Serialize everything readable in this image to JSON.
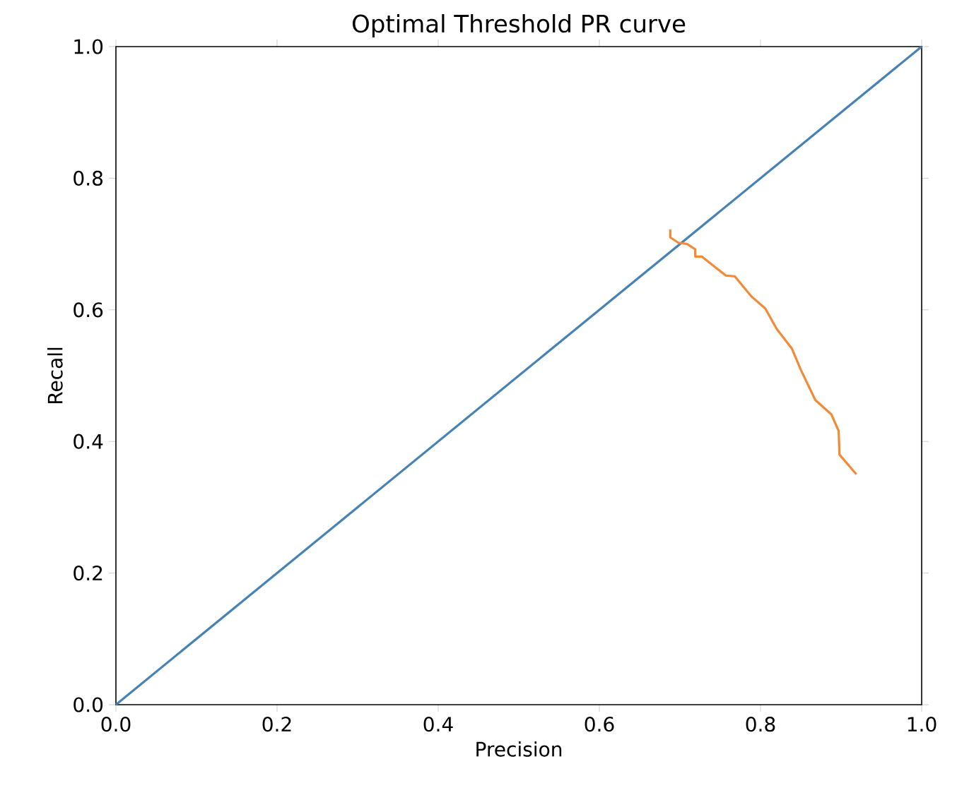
{
  "chart_data": {
    "type": "line",
    "title": "Optimal Threshold PR curve",
    "xlabel": "Precision",
    "ylabel": "Recall",
    "xlim": [
      0,
      1
    ],
    "ylim": [
      0,
      1
    ],
    "xticks": [
      {
        "value": 0,
        "label": "0.0"
      },
      {
        "value": 0.2,
        "label": "0.2"
      },
      {
        "value": 0.4,
        "label": "0.4"
      },
      {
        "value": 0.6,
        "label": "0.6"
      },
      {
        "value": 0.8,
        "label": "0.8"
      },
      {
        "value": 1,
        "label": "1.0"
      }
    ],
    "yticks": [
      {
        "value": 0,
        "label": "0.0"
      },
      {
        "value": 0.2,
        "label": "0.2"
      },
      {
        "value": 0.4,
        "label": "0.4"
      },
      {
        "value": 0.6,
        "label": "0.6"
      },
      {
        "value": 0.8,
        "label": "0.8"
      },
      {
        "value": 1,
        "label": "1.0"
      }
    ],
    "series": [
      {
        "color": "#4682b4",
        "x": [
          0,
          1
        ],
        "values": [
          0,
          1
        ]
      },
      {
        "color": "#f28a36",
        "x": [
          0.688,
          0.688,
          0.698,
          0.709,
          0.719,
          0.719,
          0.727,
          0.757,
          0.768,
          0.789,
          0.806,
          0.82,
          0.839,
          0.85,
          0.868,
          0.888,
          0.897,
          0.898,
          0.919
        ],
        "values": [
          0.722,
          0.71,
          0.702,
          0.7,
          0.692,
          0.681,
          0.681,
          0.652,
          0.651,
          0.62,
          0.602,
          0.571,
          0.541,
          0.509,
          0.463,
          0.441,
          0.416,
          0.38,
          0.35
        ]
      }
    ]
  }
}
